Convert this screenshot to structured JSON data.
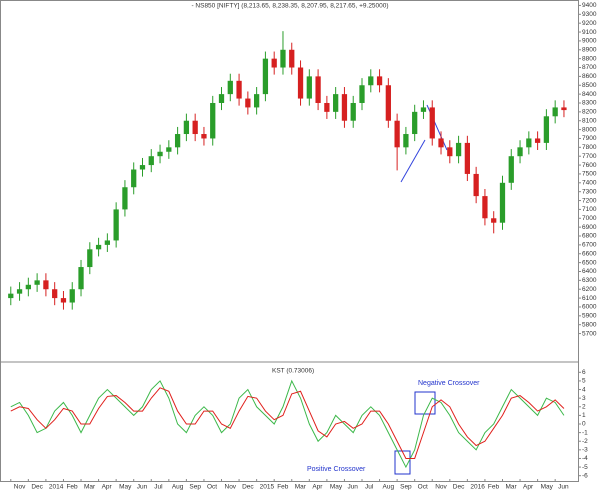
{
  "chart_data": [
    {
      "type": "candlestick",
      "title": "- NS850 [NIFTY] (8,213.65, 8,238.35, 8,207.95, 8,217.65, +9.25000)",
      "x": [
        0,
        0.5,
        1,
        1.5,
        2,
        2.5,
        3,
        3.5,
        4,
        4.5,
        5,
        5.5,
        6,
        6.5,
        7,
        7.5,
        8,
        8.5,
        9,
        9.5,
        10,
        10.5,
        11,
        11.5,
        12,
        12.5,
        13,
        13.5,
        14,
        14.5,
        15,
        15.5,
        16,
        16.5,
        17,
        17.5,
        18,
        18.5,
        19,
        19.5,
        20,
        20.5,
        21,
        21.5,
        22,
        22.5,
        23,
        23.5,
        24,
        24.5,
        25,
        25.5,
        26,
        26.5,
        27,
        27.5,
        28,
        28.5,
        29,
        29.5,
        30,
        30.5,
        31,
        31.5
      ],
      "open": [
        6100,
        6150,
        6200,
        6250,
        6300,
        6200,
        6100,
        6050,
        6200,
        6450,
        6650,
        6700,
        6750,
        7100,
        7350,
        7550,
        7600,
        7700,
        7750,
        7800,
        7950,
        8100,
        7950,
        7900,
        8300,
        8400,
        8550,
        8350,
        8250,
        8400,
        8800,
        8700,
        8900,
        8700,
        8350,
        8600,
        8300,
        8200,
        8400,
        8100,
        8300,
        8500,
        8600,
        8500,
        8100,
        7800,
        7950,
        8200,
        8250,
        7900,
        7800,
        7700,
        7850,
        7500,
        7250,
        7000,
        6950,
        7400,
        7700,
        7800,
        7900,
        7850,
        8150,
        8250
      ],
      "high": [
        6230,
        6280,
        6330,
        6380,
        6380,
        6280,
        6180,
        6280,
        6530,
        6730,
        6780,
        6830,
        7180,
        7430,
        7630,
        7680,
        7780,
        7830,
        7880,
        8030,
        8180,
        8180,
        8030,
        8380,
        8480,
        8630,
        8630,
        8430,
        8480,
        8880,
        8880,
        9110,
        8980,
        8780,
        8680,
        8680,
        8380,
        8480,
        8480,
        8380,
        8580,
        8680,
        8680,
        8580,
        8180,
        8030,
        8280,
        8330,
        8330,
        7980,
        7880,
        7930,
        7930,
        7580,
        7330,
        7080,
        7480,
        7780,
        7880,
        7980,
        7980,
        8230,
        8330,
        8330
      ],
      "low": [
        6020,
        6070,
        6120,
        6170,
        6120,
        6020,
        5970,
        5970,
        6120,
        6370,
        6570,
        6620,
        6670,
        7020,
        7270,
        7470,
        7520,
        7620,
        7670,
        7720,
        7870,
        7870,
        7820,
        7820,
        8220,
        8320,
        8270,
        8170,
        8170,
        8320,
        8620,
        8620,
        8620,
        8270,
        8270,
        8220,
        8120,
        8120,
        8020,
        8020,
        8220,
        8420,
        8420,
        8020,
        7540,
        7720,
        7870,
        8120,
        7820,
        7720,
        7620,
        7620,
        7420,
        7170,
        6920,
        6830,
        6870,
        7320,
        7620,
        7720,
        7770,
        7770,
        8070,
        8140
      ],
      "close": [
        6150,
        6200,
        6250,
        6300,
        6200,
        6100,
        6050,
        6200,
        6450,
        6650,
        6700,
        6750,
        7100,
        7350,
        7550,
        7600,
        7700,
        7750,
        7800,
        7950,
        8100,
        7950,
        7900,
        8300,
        8400,
        8550,
        8350,
        8250,
        8400,
        8800,
        8700,
        8900,
        8700,
        8350,
        8600,
        8300,
        8200,
        8400,
        8100,
        8300,
        8500,
        8600,
        8500,
        8100,
        7800,
        7950,
        8200,
        8250,
        7900,
        7800,
        7700,
        7850,
        7500,
        7250,
        7000,
        6950,
        7400,
        7700,
        7800,
        7900,
        7850,
        8150,
        8250,
        8220
      ],
      "up_color": "#2a9d2a",
      "down_color": "#d62020",
      "xlim": [
        -0.5,
        32.3
      ],
      "ylim": [
        5650,
        9450
      ],
      "yticks": [
        5700,
        5800,
        5900,
        6000,
        6100,
        6200,
        6300,
        6400,
        6500,
        6600,
        6700,
        6800,
        6900,
        7000,
        7100,
        7200,
        7300,
        7400,
        7500,
        7600,
        7700,
        7800,
        7900,
        8000,
        8100,
        8200,
        8300,
        8400,
        8500,
        8600,
        8700,
        8800,
        8900,
        9000,
        9100,
        9200,
        9300,
        9400
      ]
    },
    {
      "type": "line",
      "title": "KST (0.73006)",
      "x": [
        0,
        0.5,
        1,
        1.5,
        2,
        2.5,
        3,
        3.5,
        4,
        4.5,
        5,
        5.5,
        6,
        6.5,
        7,
        7.5,
        8,
        8.5,
        9,
        9.5,
        10,
        10.5,
        11,
        11.5,
        12,
        12.5,
        13,
        13.5,
        14,
        14.5,
        15,
        15.5,
        16,
        16.5,
        17,
        17.5,
        18,
        18.5,
        19,
        19.5,
        20,
        20.5,
        21,
        21.5,
        22,
        22.5,
        23,
        23.5,
        24,
        24.5,
        25,
        25.5,
        26,
        26.5,
        27,
        27.5,
        28,
        28.5,
        29,
        29.5,
        30,
        30.5,
        31,
        31.5
      ],
      "series": [
        {
          "color": "#3cb84a",
          "values": [
            2,
            2.5,
            1,
            -1,
            -0.5,
            1.5,
            2.5,
            1,
            -1,
            1,
            3,
            4,
            3,
            2,
            1,
            2,
            4,
            5,
            3,
            0,
            -1,
            1,
            2,
            1,
            -1,
            0,
            3,
            4,
            2,
            1,
            0,
            2,
            5,
            3,
            0,
            -2,
            -1,
            1,
            0,
            -1,
            1,
            2,
            1,
            -1,
            -3,
            -5,
            -3,
            1,
            3,
            2.5,
            1,
            -1,
            -2,
            -3,
            -1,
            0,
            2,
            4,
            3,
            2,
            1,
            3,
            2.5,
            1
          ]
        },
        {
          "color": "#e0201c",
          "values": [
            1.5,
            2,
            1.8,
            0.5,
            -0.5,
            0.5,
            1.8,
            1.5,
            0,
            0,
            1.8,
            3.2,
            3.3,
            2.5,
            1.5,
            1.5,
            3,
            4.2,
            3.8,
            1.5,
            0,
            0,
            1.5,
            1.5,
            0,
            -0.5,
            1.5,
            3.2,
            3,
            1.5,
            0.5,
            1,
            3.5,
            3.8,
            1.5,
            -0.8,
            -1.5,
            0,
            0.3,
            -0.5,
            0,
            1.5,
            1.5,
            0,
            -2,
            -4,
            -4,
            -1,
            2,
            2.8,
            2,
            0,
            -1.5,
            -2.5,
            -2,
            -0.5,
            1,
            3,
            3.3,
            2.5,
            1.5,
            2,
            2.8,
            1.8
          ]
        }
      ],
      "annotations": [
        "Negative Crossover",
        "Positive Crossover"
      ],
      "xlim": [
        -0.5,
        32.3
      ],
      "ylim": [
        -6.5,
        6.5
      ],
      "yticks": [
        -6,
        -5,
        -4,
        -3,
        -2,
        -1,
        0,
        1,
        2,
        3,
        4,
        5,
        6
      ],
      "xticks": [
        {
          "value": 0,
          "label": "Nov"
        },
        {
          "value": 1,
          "label": "Dec"
        },
        {
          "value": 2,
          "label": "2014"
        },
        {
          "value": 3,
          "label": "Feb"
        },
        {
          "value": 4,
          "label": "Mar"
        },
        {
          "value": 5,
          "label": "Apr"
        },
        {
          "value": 6,
          "label": "May"
        },
        {
          "value": 7,
          "label": "Jun"
        },
        {
          "value": 8,
          "label": "Jul"
        },
        {
          "value": 9,
          "label": "Aug"
        },
        {
          "value": 10,
          "label": "Sep"
        },
        {
          "value": 11,
          "label": "Oct"
        },
        {
          "value": 12,
          "label": "Nov"
        },
        {
          "value": 13,
          "label": "Dec"
        },
        {
          "value": 14,
          "label": "2015"
        },
        {
          "value": 15,
          "label": "Feb"
        },
        {
          "value": 16,
          "label": "Mar"
        },
        {
          "value": 17,
          "label": "Apr"
        },
        {
          "value": 18,
          "label": "May"
        },
        {
          "value": 19,
          "label": "Jun"
        },
        {
          "value": 20,
          "label": "Jul"
        },
        {
          "value": 21,
          "label": "Aug"
        },
        {
          "value": 22,
          "label": "Sep"
        },
        {
          "value": 23,
          "label": "Oct"
        },
        {
          "value": 24,
          "label": "Nov"
        },
        {
          "value": 25,
          "label": "Dec"
        },
        {
          "value": 26,
          "label": "2016"
        },
        {
          "value": 27,
          "label": "Feb"
        },
        {
          "value": 28,
          "label": "Mar"
        },
        {
          "value": 29,
          "label": "Apr"
        },
        {
          "value": 30,
          "label": "May"
        },
        {
          "value": 31,
          "label": "Jun"
        }
      ]
    }
  ]
}
